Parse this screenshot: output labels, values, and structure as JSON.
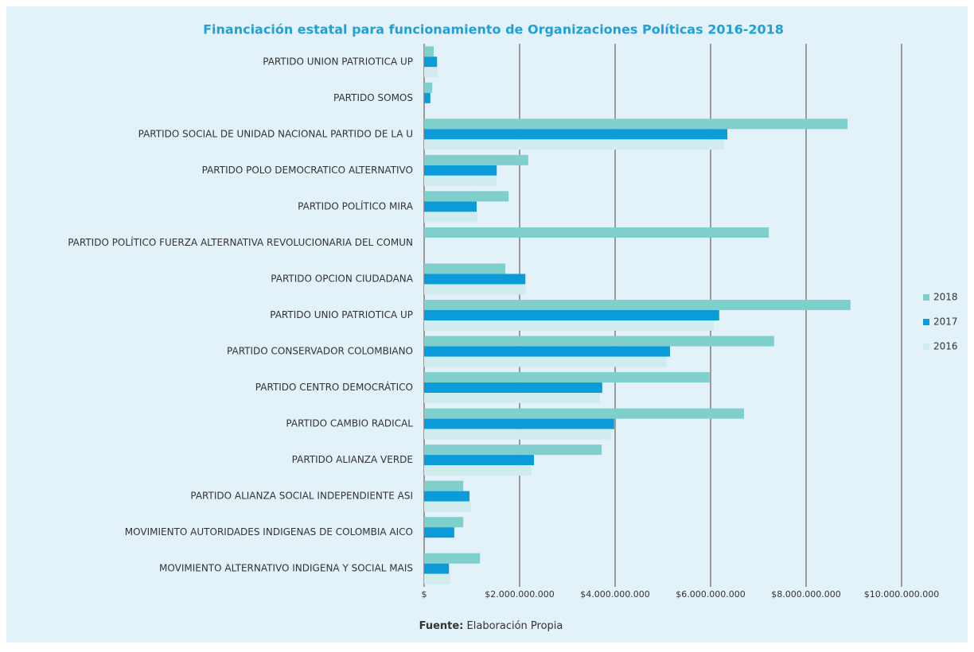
{
  "chart_data": {
    "type": "hbar",
    "title": "Financiación estatal para funcionamiento de Organizaciones Políticas 2016-2018",
    "categories": [
      "PARTIDO UNION PATRIOTICA UP",
      "PARTIDO SOMOS",
      "PARTIDO SOCIAL DE UNIDAD NACIONAL PARTIDO DE LA U",
      "PARTIDO POLO DEMOCRATICO ALTERNATIVO",
      "PARTIDO POLÍTICO MIRA",
      "PARTIDO POLÍTICO FUERZA ALTERNATIVA REVOLUCIONARIA DEL COMUN",
      "PARTIDO OPCION CIUDADANA",
      "PARTIDO UNIO PATRIOTICA UP",
      "PARTIDO CONSERVADOR COLOMBIANO",
      "PARTIDO CENTRO DEMOCRÁTICO",
      "PARTIDO  CAMBIO RADICAL",
      "PARTIDO ALIANZA VERDE",
      "PARTIDO ALIANZA SOCIAL INDEPENDIENTE ASI",
      "MOVIMIENTO AUTORIDADES INDIGENAS DE COLOMBIA AICO",
      "MOVIMIENTO ALTERNATIVO INDIGENA Y SOCIAL MAIS"
    ],
    "series": [
      {
        "name": "2018",
        "color": "#7fcfcc",
        "values": [
          200000000,
          170000000,
          8870000000,
          2180000000,
          1770000000,
          7220000000,
          1700000000,
          8930000000,
          7330000000,
          5980000000,
          6700000000,
          3720000000,
          820000000,
          820000000,
          1170000000
        ]
      },
      {
        "name": "2017",
        "color": "#0b9bd8",
        "values": [
          270000000,
          130000000,
          6350000000,
          1520000000,
          1100000000,
          null,
          2120000000,
          6180000000,
          5150000000,
          3730000000,
          3980000000,
          2300000000,
          950000000,
          630000000,
          520000000
        ]
      },
      {
        "name": "2016",
        "color": "#d0ecef",
        "values": [
          280000000,
          null,
          6280000000,
          1520000000,
          1120000000,
          null,
          2130000000,
          6070000000,
          5080000000,
          3680000000,
          3920000000,
          2250000000,
          980000000,
          null,
          550000000
        ]
      }
    ],
    "xlim": [
      0,
      10000000000
    ],
    "xticks": [
      {
        "value": 0,
        "label": "$"
      },
      {
        "value": 2000000000,
        "label": "$2.000.000.000"
      },
      {
        "value": 4000000000,
        "label": "$4.000.000.000"
      },
      {
        "value": 6000000000,
        "label": "$6.000.000.000"
      },
      {
        "value": 8000000000,
        "label": "$8.000.000.000"
      },
      {
        "value": 10000000000,
        "label": "$10.000.000.000"
      }
    ],
    "grid": true,
    "legend": "right",
    "source_label": "Fuente:",
    "source": "Elaboración Propia"
  }
}
